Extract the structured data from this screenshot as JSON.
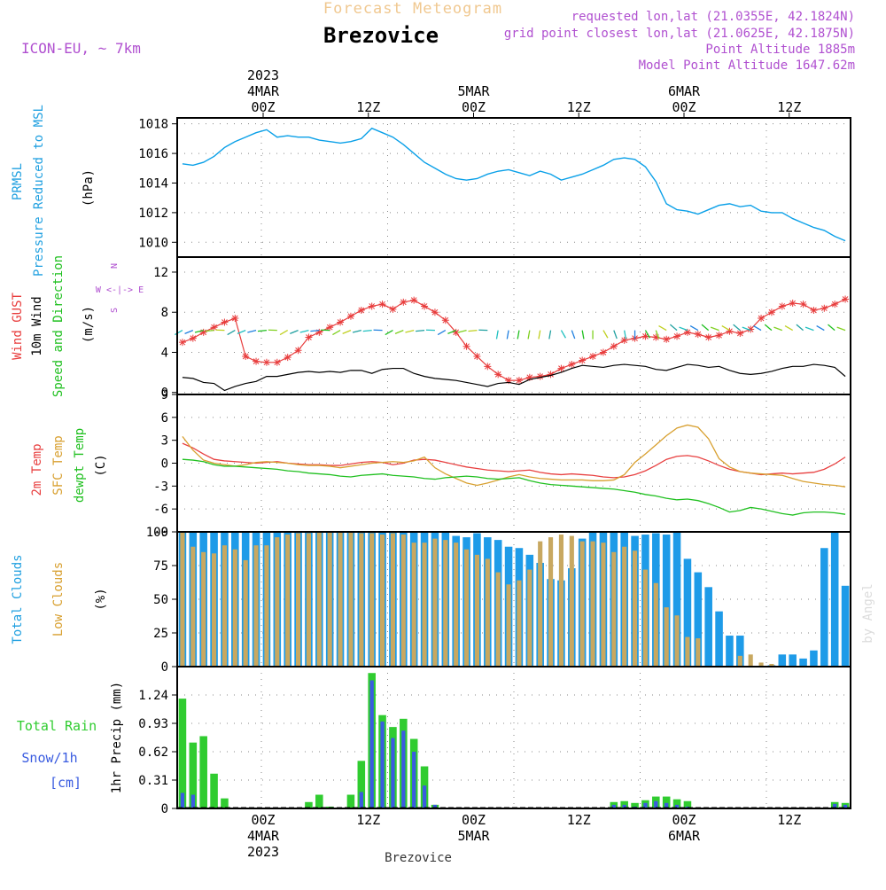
{
  "header": {
    "title": "Forecast Meteogram",
    "location": "Brezovice",
    "model": "ICON-EU, ~ 7km",
    "requested": "requested lon,lat (21.0355E, 42.1824N)",
    "gridpoint": "grid point closest lon,lat (21.0625E, 42.1875N)",
    "point_alt": "Point Altitude 1885m",
    "model_alt": "Model Point Altitude 1647.62m",
    "credit": "by Angel",
    "footer_location": "Brezovice"
  },
  "colors": {
    "pressure": "#0aa0e8",
    "gust": "#e83c3c",
    "wind": "#000000",
    "temp2m": "#e84040",
    "sfc": "#d8a030",
    "dewpt": "#20c020",
    "cloud_total": "#1e9be8",
    "cloud_low": "#c8a860",
    "rain": "#30cc30",
    "snow": "#3a5ce0",
    "title_orange": "#f0c890",
    "info_purple": "#b050d0",
    "axis_label_blue": "#20a0e0"
  },
  "chart_data": [
    {
      "type": "line",
      "panel": "pressure",
      "ylabel_lines": [
        "PRMSL",
        "Pressure Reduced to MSL"
      ],
      "unit": "(hPa)",
      "ylim": [
        1009,
        1018.4
      ],
      "yticks": [
        1010,
        1012,
        1014,
        1016,
        1018
      ],
      "grid": true,
      "x_hours": "0 to 63, hourly, starting 2023-03-03 16Z",
      "series": [
        {
          "values": [
            1015.3,
            1015.2,
            1015.4,
            1015.8,
            1016.4,
            1016.8,
            1017.1,
            1017.4,
            1017.6,
            1017.1,
            1017.2,
            1017.1,
            1017.1,
            1016.9,
            1016.8,
            1016.7,
            1016.8,
            1017.0,
            1017.7,
            1017.4,
            1017.1,
            1016.6,
            1016.0,
            1015.4,
            1015.0,
            1014.6,
            1014.3,
            1014.2,
            1014.3,
            1014.6,
            1014.8,
            1014.9,
            1014.7,
            1014.5,
            1014.8,
            1014.6,
            1014.2,
            1014.4,
            1014.6,
            1014.9,
            1015.2,
            1015.6,
            1015.7,
            1015.6,
            1015.1,
            1014.1,
            1012.6,
            1012.2,
            1012.1,
            1011.9,
            1012.2,
            1012.5,
            1012.6,
            1012.4,
            1012.5,
            1012.1,
            1012.0,
            1012.0,
            1011.6,
            1011.3,
            1011.0,
            1010.8,
            1010.4,
            1010.1
          ]
        }
      ]
    },
    {
      "type": "line",
      "panel": "wind",
      "ylabel_lines": [
        "Wind GUST",
        "10m Wind",
        "Speed and Direction"
      ],
      "unit": "(m/s)",
      "ylim": [
        -0.2,
        13.5
      ],
      "yticks": [
        0,
        4,
        8,
        12
      ],
      "grid": true,
      "compass": [
        "N",
        "W <-|-> E",
        "S"
      ],
      "series": [
        {
          "name": "Wind GUST",
          "values": [
            5.0,
            5.4,
            6.0,
            6.5,
            7.0,
            7.4,
            3.6,
            3.1,
            3.0,
            3.0,
            3.5,
            4.2,
            5.5,
            6.0,
            6.5,
            7.0,
            7.6,
            8.2,
            8.6,
            8.8,
            8.3,
            9.0,
            9.2,
            8.6,
            8.0,
            7.2,
            6.0,
            4.6,
            3.6,
            2.6,
            1.8,
            1.2,
            1.2,
            1.5,
            1.6,
            1.8,
            2.4,
            2.8,
            3.2,
            3.6,
            4.0,
            4.6,
            5.2,
            5.4,
            5.6,
            5.5,
            5.3,
            5.6,
            6.0,
            5.8,
            5.5,
            5.7,
            6.1,
            5.9,
            6.3,
            7.4,
            8.0,
            8.6,
            8.9,
            8.8,
            8.2,
            8.4,
            8.8,
            9.3
          ]
        },
        {
          "name": "10m Wind",
          "values": [
            1.5,
            1.4,
            1.0,
            0.9,
            0.2,
            0.6,
            0.9,
            1.1,
            1.6,
            1.6,
            1.8,
            2.0,
            2.1,
            2.0,
            2.1,
            2.0,
            2.2,
            2.2,
            1.9,
            2.3,
            2.4,
            2.4,
            1.9,
            1.6,
            1.4,
            1.3,
            1.2,
            1.0,
            0.8,
            0.6,
            0.9,
            1.0,
            0.8,
            1.3,
            1.5,
            1.7,
            2.0,
            2.4,
            2.7,
            2.6,
            2.5,
            2.7,
            2.8,
            2.7,
            2.6,
            2.3,
            2.2,
            2.5,
            2.8,
            2.7,
            2.5,
            2.6,
            2.2,
            1.9,
            1.8,
            1.9,
            2.1,
            2.4,
            2.6,
            2.6,
            2.8,
            2.7,
            2.5,
            1.6
          ]
        }
      ]
    },
    {
      "type": "line",
      "panel": "temperature",
      "ylabel_lines": [
        "2m Temp",
        "SFC Temp",
        "dewpt Temp"
      ],
      "unit": "(C)",
      "ylim": [
        -9,
        9
      ],
      "yticks": [
        -9,
        -6,
        -3,
        0,
        3,
        6,
        9
      ],
      "grid": true,
      "series": [
        {
          "name": "2m Temp",
          "values": [
            2.6,
            2.0,
            1.2,
            0.5,
            0.3,
            0.2,
            0.1,
            0.0,
            0.1,
            0.2,
            0.0,
            -0.1,
            -0.2,
            -0.2,
            -0.3,
            -0.3,
            -0.1,
            0.1,
            0.2,
            0.1,
            -0.2,
            0.0,
            0.4,
            0.5,
            0.4,
            0.1,
            -0.2,
            -0.5,
            -0.7,
            -0.9,
            -1.0,
            -1.1,
            -1.0,
            -0.9,
            -1.2,
            -1.4,
            -1.5,
            -1.4,
            -1.5,
            -1.6,
            -1.8,
            -1.9,
            -1.8,
            -1.5,
            -1.0,
            -0.3,
            0.5,
            0.9,
            1.0,
            0.8,
            0.3,
            -0.3,
            -0.8,
            -1.1,
            -1.3,
            -1.5,
            -1.4,
            -1.3,
            -1.4,
            -1.3,
            -1.2,
            -0.8,
            -0.1,
            0.8
          ]
        },
        {
          "name": "SFC Temp",
          "values": [
            3.5,
            1.7,
            0.4,
            0.0,
            -0.2,
            -0.4,
            -0.2,
            0.1,
            0.2,
            0.1,
            0.0,
            -0.2,
            -0.3,
            -0.3,
            -0.4,
            -0.6,
            -0.4,
            -0.2,
            0.0,
            0.1,
            0.2,
            0.1,
            0.3,
            0.8,
            -0.6,
            -1.4,
            -2.0,
            -2.6,
            -2.9,
            -2.6,
            -2.2,
            -1.8,
            -1.5,
            -1.8,
            -2.0,
            -2.1,
            -2.2,
            -2.2,
            -2.2,
            -2.3,
            -2.3,
            -2.2,
            -1.5,
            0.1,
            1.2,
            2.4,
            3.6,
            4.6,
            5.0,
            4.7,
            3.2,
            0.6,
            -0.5,
            -1.1,
            -1.3,
            -1.4,
            -1.5,
            -1.6,
            -2.0,
            -2.4,
            -2.6,
            -2.8,
            -2.9,
            -3.1
          ]
        },
        {
          "name": "dewpt Temp",
          "values": [
            0.5,
            0.4,
            0.2,
            -0.2,
            -0.4,
            -0.4,
            -0.5,
            -0.6,
            -0.7,
            -0.8,
            -1.0,
            -1.1,
            -1.3,
            -1.4,
            -1.5,
            -1.7,
            -1.8,
            -1.6,
            -1.5,
            -1.4,
            -1.6,
            -1.7,
            -1.8,
            -2.0,
            -2.1,
            -1.9,
            -1.8,
            -1.7,
            -1.8,
            -2.0,
            -2.1,
            -2.0,
            -1.9,
            -2.3,
            -2.6,
            -2.8,
            -2.9,
            -3.0,
            -3.1,
            -3.2,
            -3.3,
            -3.4,
            -3.6,
            -3.8,
            -4.1,
            -4.3,
            -4.6,
            -4.8,
            -4.7,
            -4.9,
            -5.3,
            -5.8,
            -6.4,
            -6.2,
            -5.8,
            -6.0,
            -6.3,
            -6.6,
            -6.8,
            -6.5,
            -6.4,
            -6.4,
            -6.5,
            -6.7
          ]
        }
      ]
    },
    {
      "type": "bar",
      "panel": "clouds",
      "ylabel_lines": [
        "Total Clouds",
        "Low Clouds"
      ],
      "unit": "(%)",
      "ylim": [
        0,
        100
      ],
      "yticks": [
        0,
        25,
        50,
        75,
        100
      ],
      "grid": true,
      "series": [
        {
          "name": "Total Clouds",
          "values": [
            100,
            100,
            100,
            100,
            100,
            100,
            100,
            100,
            100,
            100,
            100,
            100,
            100,
            100,
            100,
            100,
            100,
            100,
            100,
            100,
            100,
            100,
            100,
            100,
            100,
            100,
            97,
            96,
            99,
            96,
            94,
            89,
            88,
            83,
            77,
            65,
            64,
            73,
            95,
            100,
            100,
            100,
            100,
            97,
            98,
            99,
            98,
            100,
            80,
            70,
            59,
            41,
            23,
            23,
            0,
            0,
            1,
            9,
            9,
            6,
            12,
            88,
            100,
            60
          ]
        },
        {
          "name": "Low Clouds",
          "values": [
            100,
            89,
            85,
            84,
            90,
            87,
            79,
            90,
            90,
            96,
            98,
            99,
            99,
            100,
            100,
            100,
            100,
            99,
            99,
            98,
            99,
            98,
            92,
            92,
            95,
            94,
            92,
            87,
            83,
            80,
            70,
            61,
            64,
            72,
            93,
            96,
            98,
            97,
            93,
            93,
            92,
            85,
            89,
            86,
            72,
            62,
            44,
            38,
            22,
            21,
            0,
            0,
            0,
            8,
            9,
            3,
            2,
            0,
            0,
            0,
            0,
            0,
            0,
            0
          ]
        }
      ]
    },
    {
      "type": "bar",
      "panel": "precip",
      "ylabel_lines": [
        "Total Rain",
        "Snow/1h",
        "[cm]"
      ],
      "unit": "1hr Precip (mm)",
      "ylim": [
        0,
        1.55
      ],
      "yticks": [
        0,
        0.31,
        0.62,
        0.93,
        1.24
      ],
      "grid": true,
      "series": [
        {
          "name": "Total Rain",
          "values": [
            1.2,
            0.72,
            0.79,
            0.38,
            0.11,
            0,
            0,
            0,
            0,
            0,
            0,
            0,
            0.07,
            0.15,
            0.02,
            0,
            0.15,
            0.52,
            1.48,
            1.02,
            0.89,
            0.98,
            0.76,
            0.46,
            0.04,
            0,
            0,
            0,
            0,
            0,
            0,
            0,
            0,
            0,
            0,
            0,
            0,
            0,
            0,
            0,
            0,
            0.07,
            0.08,
            0.06,
            0.09,
            0.13,
            0.13,
            0.1,
            0.08,
            0.01,
            0,
            0,
            0,
            0,
            0,
            0,
            0,
            0,
            0,
            0,
            0,
            0,
            0.07,
            0.06
          ]
        },
        {
          "name": "Snow/1h",
          "values": [
            0.17,
            0.15,
            0,
            0,
            0,
            0,
            0,
            0,
            0,
            0,
            0,
            0,
            0,
            0,
            0,
            0,
            0,
            0.18,
            1.4,
            0.95,
            0.77,
            0.85,
            0.62,
            0.25,
            0.04,
            0,
            0,
            0,
            0,
            0,
            0,
            0,
            0,
            0,
            0,
            0,
            0,
            0,
            0,
            0,
            0,
            0.04,
            0.04,
            0.02,
            0.06,
            0.08,
            0.06,
            0.04,
            0.02,
            0,
            0,
            0,
            0,
            0,
            0,
            0,
            0,
            0,
            0,
            0,
            0,
            0,
            0.05,
            0.04
          ]
        }
      ]
    }
  ],
  "time_axis": {
    "top_labels": [
      {
        "line1": "2023",
        "line2": "4MAR",
        "line3": "00Z"
      },
      {
        "line1": "",
        "line2": "",
        "line3": "12Z"
      },
      {
        "line1": "",
        "line2": "5MAR",
        "line3": "00Z"
      },
      {
        "line1": "",
        "line2": "",
        "line3": "12Z"
      },
      {
        "line1": "",
        "line2": "6MAR",
        "line3": "00Z"
      },
      {
        "line1": "",
        "line2": "",
        "line3": "12Z"
      }
    ],
    "bottom_labels": [
      {
        "line1": "00Z",
        "line2": "4MAR",
        "line3": "2023"
      },
      {
        "line1": "12Z",
        "line2": "",
        "line3": ""
      },
      {
        "line1": "00Z",
        "line2": "5MAR",
        "line3": ""
      },
      {
        "line1": "12Z",
        "line2": "",
        "line3": ""
      },
      {
        "line1": "00Z",
        "line2": "6MAR",
        "line3": ""
      },
      {
        "line1": "12Z",
        "line2": "",
        "line3": ""
      }
    ]
  }
}
